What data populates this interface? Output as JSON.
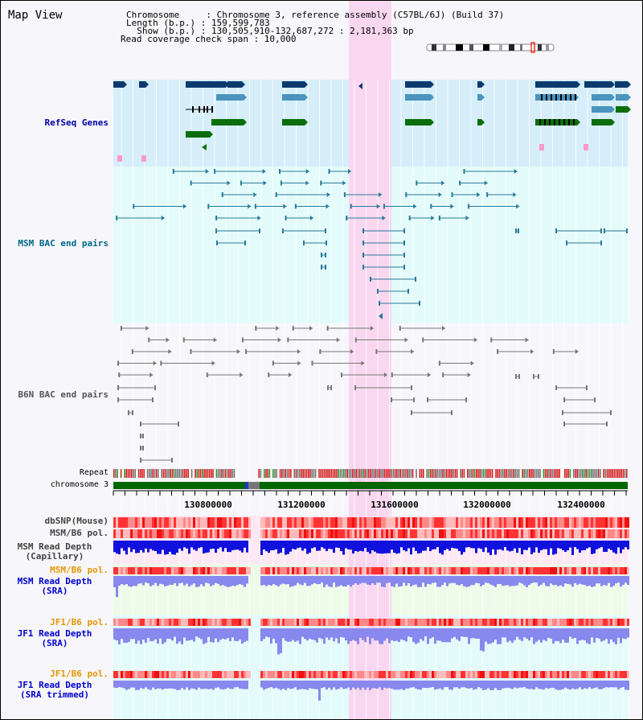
{
  "view_title": "Map View",
  "info": {
    "chromosome_line": "Chromosome     : Chromosome 3, reference assembly (C57BL/6J) (Build 37)",
    "length_line": "Length (b.p.) : 159,599,783",
    "show_line": "  Show (b.p.) : 130,505,910-132,687,272 : 2,181,363 bp",
    "coverage_line": "Read coverage check span : 10,000"
  },
  "tracks": {
    "refseq": "RefSeq Genes",
    "msm_bac": "MSM BAC end pairs",
    "b6n_bac": "B6N BAC end pairs",
    "repeat": "Repeat",
    "chromosome": "chromosome 3",
    "dbsnp": "dbSNP(Mouse)",
    "msm_b6_pol": "MSM/B6 pol.",
    "msm_depth_cap": "MSM Read Depth\n(Capillary)",
    "msm_b6_pol_sra": "MSM/B6 pol.",
    "msm_depth_sra": "MSM Read Depth\n(SRA)",
    "jf1_b6_pol": "JF1/B6 pol.",
    "jf1_depth_sra": "JF1 Read Depth\n(SRA)",
    "jf1_b6_pol_trim": "JF1/B6 pol.",
    "jf1_depth_trim": "JF1 Read Depth\n(SRA trimmed)"
  },
  "axis_ticks": [
    "130800000",
    "131200000",
    "131600000",
    "132000000",
    "132400000"
  ],
  "colors": {
    "refseq_label": "#0000aa",
    "msm_label": "#006688",
    "b6n_label": "#555555",
    "orange_label": "#e69500",
    "blue_label": "#0000cc",
    "refseq_bg": "#d6eef9",
    "msm_bg": "#e3fbfb",
    "highlight": "#f9d7f0",
    "gene_dark": "#0d3a6e",
    "gene_mid": "#4a94bf",
    "gene_green": "#0b6e0b",
    "chrom_green": "#006600",
    "depth_dark": "#1111dd",
    "depth_light": "#8888ee"
  }
}
